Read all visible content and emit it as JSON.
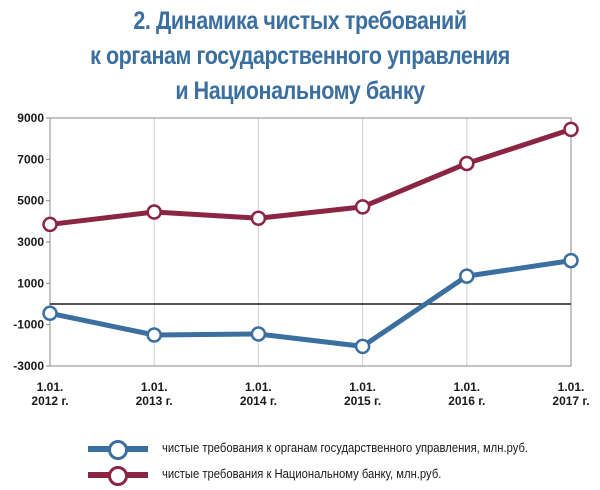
{
  "title_lines": [
    "2. Динамика чистых требований",
    "к органам государственного управления",
    "и Национальному банку"
  ],
  "chart_data": {
    "type": "line",
    "categories": [
      [
        "1.01.",
        "2012 г."
      ],
      [
        "1.01.",
        "2013 г."
      ],
      [
        "1.01.",
        "2014 г."
      ],
      [
        "1.01.",
        "2015 г."
      ],
      [
        "1.01.",
        "2016 г."
      ],
      [
        "1.01.",
        "2017 г."
      ]
    ],
    "ylim": [
      -3000,
      9000
    ],
    "yticks": [
      9000,
      7000,
      5000,
      3000,
      1000,
      -1000,
      -3000
    ],
    "grid": "vertical",
    "zero_line": true,
    "series": [
      {
        "name": "чистые требования к органам государственного управления, млн.руб.",
        "color": "#3b6f9f",
        "values": [
          -450,
          -1500,
          -1450,
          -2050,
          1350,
          2100
        ]
      },
      {
        "name": "чистые требования к Национальному банку, млн.руб.",
        "color": "#8b2544",
        "values": [
          3850,
          4450,
          4150,
          4700,
          6800,
          8450
        ]
      }
    ],
    "legend_position": "bottom"
  }
}
